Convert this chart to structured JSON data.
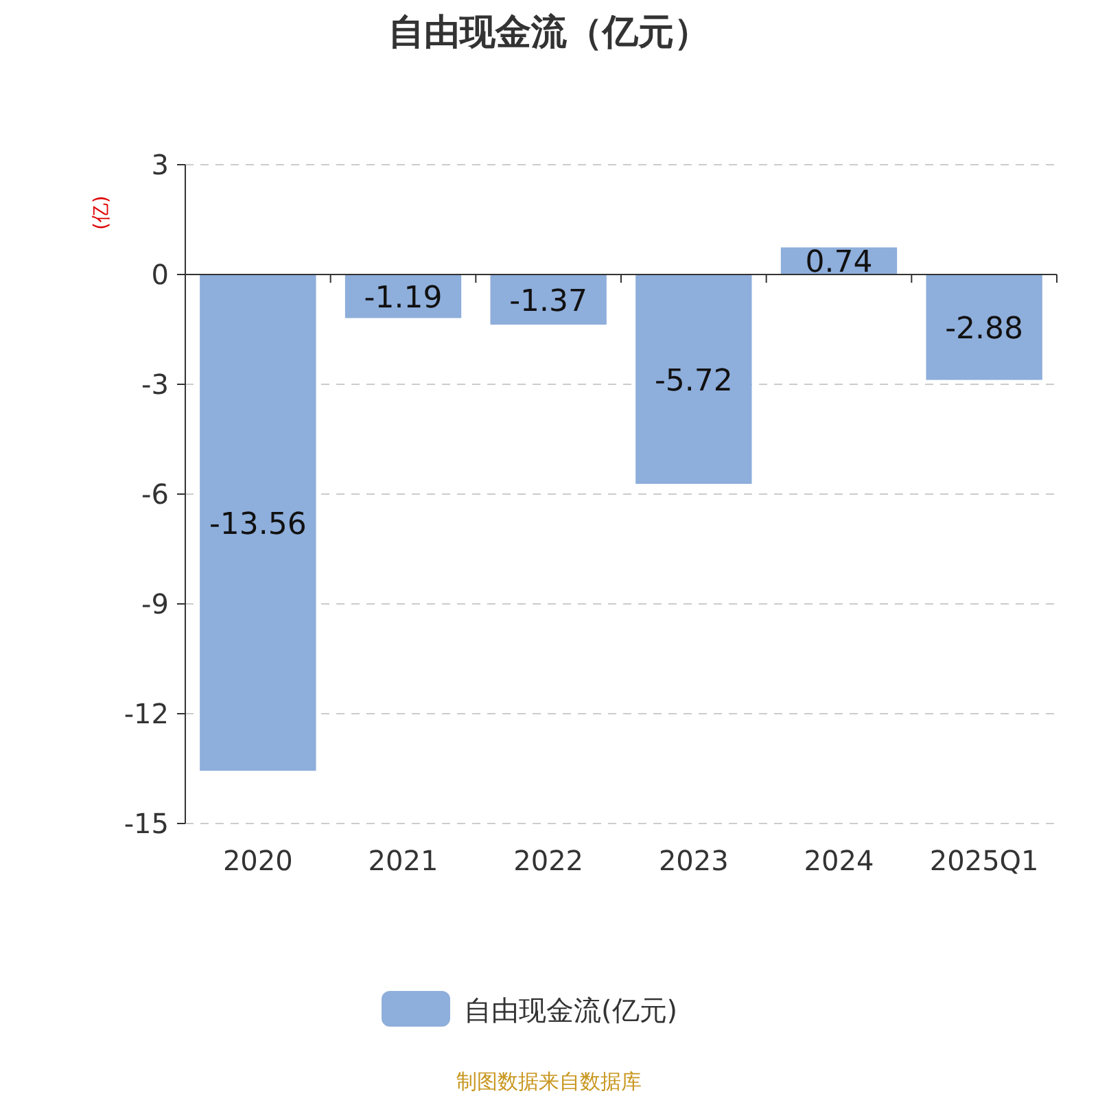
{
  "chart_data": {
    "type": "bar",
    "title": "自由现金流（亿元）",
    "ylabel": "(亿)",
    "categories": [
      "2020",
      "2021",
      "2022",
      "2023",
      "2024",
      "2025Q1"
    ],
    "series": [
      {
        "name": "自由现金流(亿元)",
        "color": "#8eaedb",
        "values": [
          -13.56,
          -1.19,
          -1.37,
          -5.72,
          0.74,
          -2.88
        ]
      }
    ],
    "ylim": [
      -15,
      3
    ],
    "yticks": [
      -15,
      -12,
      -9,
      -6,
      -3,
      0,
      3
    ],
    "grid": "y",
    "data_labels": true,
    "legend": "bottom",
    "annotations": [
      "制图数据来自数据库"
    ]
  }
}
